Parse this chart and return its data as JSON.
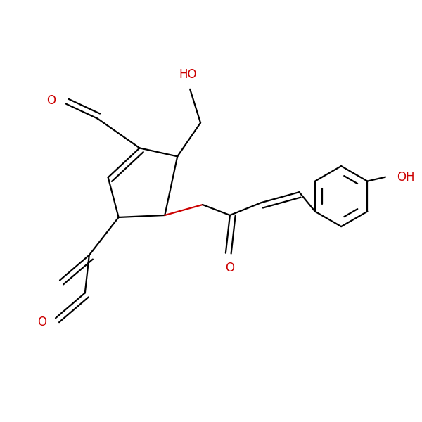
{
  "bg_color": "#ffffff",
  "bond_color": "#000000",
  "hetero_color": "#cc0000",
  "line_width": 1.6,
  "figsize": [
    6.0,
    6.0
  ],
  "dpi": 100,
  "xlim": [
    0,
    10
  ],
  "ylim": [
    0,
    10
  ]
}
